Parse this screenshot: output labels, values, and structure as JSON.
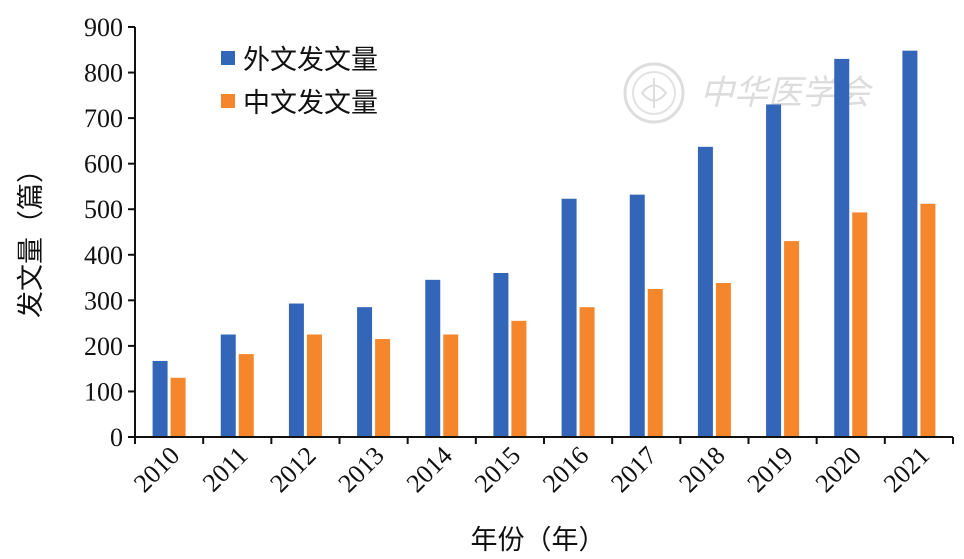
{
  "chart_data": {
    "type": "bar",
    "categories": [
      "2010",
      "2011",
      "2012",
      "2013",
      "2014",
      "2015",
      "2016",
      "2017",
      "2018",
      "2019",
      "2020",
      "2021"
    ],
    "series": [
      {
        "name": "外文发文量",
        "color": "#3366b8",
        "values": [
          167,
          225,
          293,
          285,
          345,
          360,
          523,
          532,
          637,
          730,
          830,
          848
        ]
      },
      {
        "name": "中文发文量",
        "color": "#f5862c",
        "values": [
          130,
          182,
          225,
          215,
          225,
          255,
          285,
          325,
          338,
          430,
          493,
          512
        ]
      }
    ],
    "xlabel": "年份（年）",
    "ylabel": "发文量（篇）",
    "ylim": [
      0,
      900
    ],
    "yticks": [
      0,
      100,
      200,
      300,
      400,
      500,
      600,
      700,
      800,
      900
    ],
    "legend_position": "top-left",
    "grid": false
  },
  "watermark": {
    "text": "中华医学会"
  }
}
